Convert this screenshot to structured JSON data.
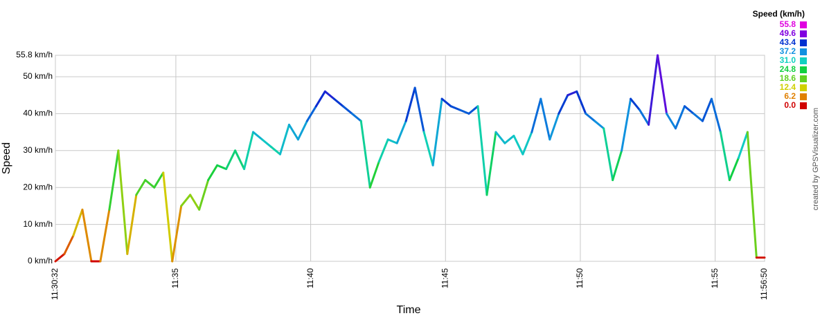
{
  "chart_data": {
    "type": "line",
    "xlabel": "Time",
    "ylabel": "Speed",
    "credit": "created by GPSVisualizer.com",
    "legend_title": "Speed (km/h)",
    "legend_stops": [
      {
        "value": 55.8,
        "label": "55.8",
        "color": "#e000e0"
      },
      {
        "value": 49.6,
        "label": "49.6",
        "color": "#8000e0"
      },
      {
        "value": 43.4,
        "label": "43.4",
        "color": "#0030d0"
      },
      {
        "value": 37.2,
        "label": "37.2",
        "color": "#1090e0"
      },
      {
        "value": 31,
        "label": "31.0",
        "color": "#10d0c0"
      },
      {
        "value": 24.8,
        "label": "24.8",
        "color": "#10d040"
      },
      {
        "value": 18.6,
        "label": "18.6",
        "color": "#60d020"
      },
      {
        "value": 12.4,
        "label": "12.4",
        "color": "#d0d000"
      },
      {
        "value": 6.2,
        "label": "6.2",
        "color": "#e08000"
      },
      {
        "value": 0,
        "label": "0.0",
        "color": "#d00000"
      }
    ],
    "xlim": [
      "11:30:32",
      "11:56:50"
    ],
    "xticks": [
      "11:30:32",
      {
        "value": "11:35:00",
        "label": "11:35"
      },
      {
        "value": "11:40:00",
        "label": "11:40"
      },
      {
        "value": "11:45:00",
        "label": "11:45"
      },
      {
        "value": "11:50:00",
        "label": "11:50"
      },
      {
        "value": "11:55:00",
        "label": "11:55"
      },
      "11:56:50"
    ],
    "ylim": [
      0,
      55.8
    ],
    "yticks": [
      {
        "value": 0,
        "label": "0 km/h"
      },
      {
        "value": 10,
        "label": "10 km/h"
      },
      {
        "value": 20,
        "label": "20 km/h"
      },
      {
        "value": 30,
        "label": "30 km/h"
      },
      {
        "value": 40,
        "label": "40 km/h"
      },
      {
        "value": 50,
        "label": "50 km/h"
      },
      {
        "value": 55.8,
        "label": "55.8 km/h"
      }
    ],
    "grid": true,
    "x": [
      "11:30:32",
      "11:30:52",
      "11:31:12",
      "11:31:32",
      "11:31:52",
      "11:32:12",
      "11:32:32",
      "11:32:52",
      "11:33:12",
      "11:33:32",
      "11:33:52",
      "11:34:12",
      "11:34:32",
      "11:34:52",
      "11:35:12",
      "11:35:32",
      "11:35:52",
      "11:36:12",
      "11:36:32",
      "11:36:52",
      "11:37:12",
      "11:37:32",
      "11:37:52",
      "11:38:12",
      "11:38:32",
      "11:38:52",
      "11:39:12",
      "11:39:32",
      "11:39:52",
      "11:40:12",
      "11:40:32",
      "11:40:52",
      "11:41:12",
      "11:41:32",
      "11:41:52",
      "11:42:12",
      "11:42:32",
      "11:42:52",
      "11:43:12",
      "11:43:32",
      "11:43:52",
      "11:44:12",
      "11:44:32",
      "11:44:52",
      "11:45:12",
      "11:45:32",
      "11:45:52",
      "11:46:12",
      "11:46:32",
      "11:46:52",
      "11:47:12",
      "11:47:32",
      "11:47:52",
      "11:48:12",
      "11:48:32",
      "11:48:52",
      "11:49:12",
      "11:49:32",
      "11:49:52",
      "11:50:12",
      "11:50:32",
      "11:50:52",
      "11:51:12",
      "11:51:32",
      "11:51:52",
      "11:52:12",
      "11:52:32",
      "11:52:52",
      "11:53:12",
      "11:53:32",
      "11:53:52",
      "11:54:12",
      "11:54:32",
      "11:54:52",
      "11:55:12",
      "11:55:32",
      "11:55:52",
      "11:56:12",
      "11:56:32",
      "11:56:50"
    ],
    "values": [
      0,
      2,
      7,
      14,
      0,
      0,
      14,
      30,
      2,
      18,
      22,
      20,
      24,
      0,
      15,
      18,
      14,
      22,
      26,
      25,
      30,
      25,
      35,
      33,
      31,
      29,
      37,
      33,
      38,
      42,
      46,
      44,
      42,
      40,
      38,
      20,
      27,
      33,
      32,
      38,
      47,
      35,
      26,
      44,
      42,
      41,
      40,
      42,
      18,
      35,
      32,
      34,
      29,
      35,
      44,
      33,
      40,
      45,
      46,
      40,
      38,
      36,
      22,
      30,
      44,
      41,
      37,
      55.8,
      40,
      36,
      42,
      40,
      38,
      44,
      35,
      22,
      28,
      35,
      1,
      1
    ]
  }
}
